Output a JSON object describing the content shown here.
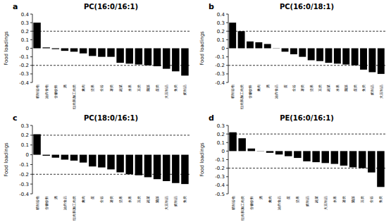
{
  "chart_data": [
    {
      "type": "bar",
      "panel_label": "a",
      "title": "PC(16:0/16:1)",
      "y_label": "Food loadings",
      "color": "#000000",
      "categories": [
        "精制谷物",
        "油炸食物",
        "含糖饮料",
        "酒",
        "红肉和加工肉类",
        "禽肉",
        "坚果",
        "全谷",
        "薯类",
        "蔬菜",
        "水果",
        "豆类",
        "菌藻",
        "蛋类",
        "大豆制品",
        "鱼类",
        "奶制品"
      ],
      "values": [
        0.3,
        0.01,
        -0.01,
        -0.03,
        -0.04,
        -0.06,
        -0.09,
        -0.1,
        -0.1,
        -0.17,
        -0.18,
        -0.19,
        -0.2,
        -0.21,
        -0.24,
        -0.27,
        -0.32
      ],
      "ylim": [
        -0.4,
        0.4
      ],
      "yticks": [
        0.4,
        0.3,
        0.2,
        0.1,
        0,
        -0.1,
        -0.2,
        -0.3,
        -0.4
      ],
      "threshold_lines": [
        0.2,
        -0.2
      ]
    },
    {
      "type": "bar",
      "panel_label": "b",
      "title": "PC(16:0/18:1)",
      "y_label": "Food loadings",
      "color": "#000000",
      "categories": [
        "精制谷物",
        "红肉和加工肉类",
        "含糖饮料",
        "禽肉",
        "酒",
        "油炸食品",
        "蛋",
        "全谷",
        "薯类",
        "坚果",
        "豆类",
        "蔬菜",
        "水果",
        "菌藻",
        "蛋类",
        "鱼类",
        "奶制品",
        "大豆制品"
      ],
      "values": [
        0.3,
        0.2,
        0.08,
        0.07,
        0.05,
        0.0,
        -0.04,
        -0.07,
        -0.1,
        -0.14,
        -0.15,
        -0.17,
        -0.18,
        -0.19,
        -0.2,
        -0.25,
        -0.28,
        -0.3
      ],
      "ylim": [
        -0.4,
        0.4
      ],
      "yticks": [
        0.4,
        0.3,
        0.2,
        0.1,
        0,
        -0.1,
        -0.2,
        -0.3,
        -0.4
      ],
      "threshold_lines": [
        0.2,
        -0.2
      ]
    },
    {
      "type": "bar",
      "panel_label": "c",
      "title": "PC(18:0/16:1)",
      "y_label": "Food loadings",
      "color": "#000000",
      "categories": [
        "精制谷物",
        "含糖饮料",
        "酒",
        "油炸食品",
        "红肉和加工肉类",
        "禽肉",
        "蛋",
        "全谷",
        "薯类",
        "坚果",
        "水果",
        "豆类",
        "蔬菜",
        "菌藻",
        "大豆制品",
        "奶制品",
        "鱼类"
      ],
      "values": [
        0.21,
        -0.01,
        -0.03,
        -0.05,
        -0.06,
        -0.08,
        -0.12,
        -0.13,
        -0.15,
        -0.18,
        -0.2,
        -0.21,
        -0.23,
        -0.25,
        -0.27,
        -0.29,
        -0.3
      ],
      "ylim": [
        -0.4,
        0.3
      ],
      "yticks": [
        0.3,
        0.2,
        0.1,
        0,
        -0.1,
        -0.2,
        -0.3,
        -0.4
      ],
      "threshold_lines": [
        0.2,
        -0.2
      ]
    },
    {
      "type": "bar",
      "panel_label": "d",
      "title": "PE(16:0/16:1)",
      "y_label": "Food loadings",
      "color": "#000000",
      "categories": [
        "精制谷物",
        "红肉和加工肉类",
        "含糖饮料",
        "酒",
        "禽肉",
        "油炸食品",
        "蛋",
        "坚果",
        "奶制品",
        "蔬菜",
        "大豆制品",
        "水果",
        "薯类",
        "菌藻",
        "豆类",
        "全谷",
        "鱼类"
      ],
      "values": [
        0.22,
        0.15,
        0.03,
        0.0,
        -0.02,
        -0.04,
        -0.06,
        -0.08,
        -0.12,
        -0.13,
        -0.14,
        -0.15,
        -0.17,
        -0.19,
        -0.2,
        -0.25,
        -0.42
      ],
      "ylim": [
        -0.5,
        0.3
      ],
      "yticks": [
        0.3,
        0.2,
        0.1,
        0,
        -0.1,
        -0.2,
        -0.3,
        -0.4,
        -0.5
      ],
      "threshold_lines": [
        0.2,
        -0.2
      ]
    }
  ]
}
